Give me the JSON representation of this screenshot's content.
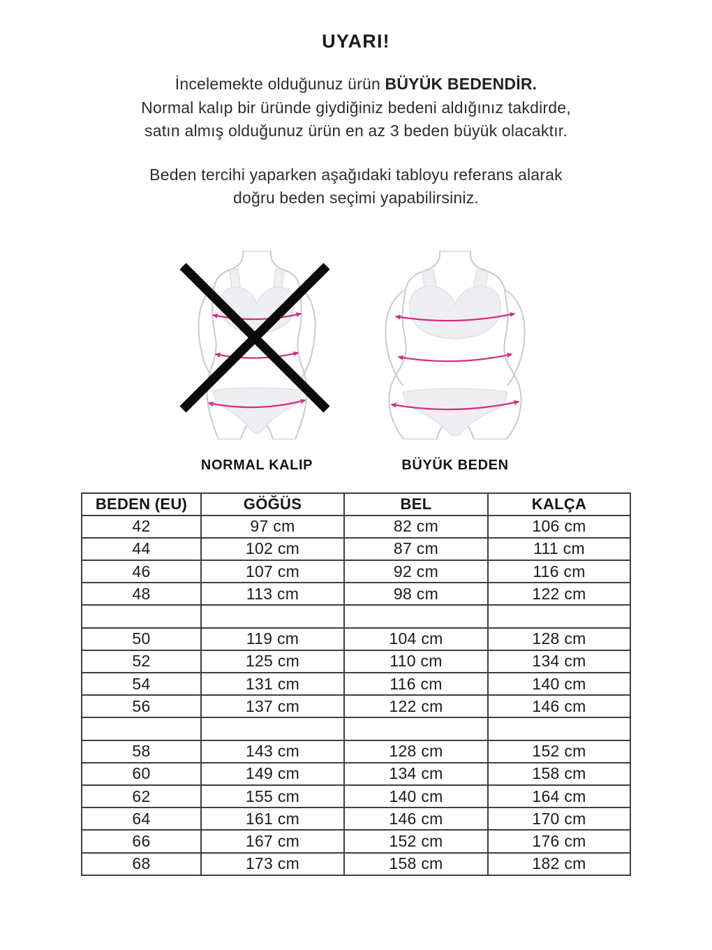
{
  "warning": {
    "title": "UYARI!",
    "p1_line1_normal": "İncelemekte olduğunuz ürün ",
    "p1_line1_strong": "BÜYÜK BEDENDİR.",
    "p1_line2": "Normal kalıp bir üründe giydiğiniz bedeni aldığınız takdirde,",
    "p1_line3": "satın almış olduğunuz ürün en az 3 beden büyük olacaktır.",
    "p2_line1": "Beden tercihi yaparken aşağıdaki tabloyu referans alarak",
    "p2_line2": "doğru beden seçimi yapabilirsiniz."
  },
  "figures": {
    "left_label": "NORMAL KALIP",
    "right_label": "BÜYÜK BEDEN"
  },
  "size_table": {
    "headers": [
      "BEDEN (EU)",
      "GÖĞÜS",
      "BEL",
      "KALÇA"
    ],
    "rows": [
      [
        "42",
        "97 cm",
        "82 cm",
        "106 cm"
      ],
      [
        "44",
        "102 cm",
        "87 cm",
        "111 cm"
      ],
      [
        "46",
        "107 cm",
        "92 cm",
        "116 cm"
      ],
      [
        "48",
        "113 cm",
        "98 cm",
        "122 cm"
      ],
      [
        "",
        "",
        "",
        ""
      ],
      [
        "50",
        "119 cm",
        "104 cm",
        "128 cm"
      ],
      [
        "52",
        "125 cm",
        "110 cm",
        "134 cm"
      ],
      [
        "54",
        "131 cm",
        "116 cm",
        "140 cm"
      ],
      [
        "56",
        "137 cm",
        "122 cm",
        "146 cm"
      ],
      [
        "",
        "",
        "",
        ""
      ],
      [
        "58",
        "143 cm",
        "128 cm",
        "152 cm"
      ],
      [
        "60",
        "149 cm",
        "134 cm",
        "158 cm"
      ],
      [
        "62",
        "155 cm",
        "140 cm",
        "164 cm"
      ],
      [
        "64",
        "161 cm",
        "146 cm",
        "170 cm"
      ],
      [
        "66",
        "167 cm",
        "152 cm",
        "176 cm"
      ],
      [
        "68",
        "173 cm",
        "158 cm",
        "182 cm"
      ]
    ]
  },
  "colors": {
    "text": "#1f1f1f",
    "table_border": "#3f3f3f",
    "accent_pink": "#d42e82",
    "figure_outline": "#c9c9d2",
    "garment_fill": "#efeff3",
    "cross_black": "#0b0b0b",
    "background": "#ffffff"
  }
}
